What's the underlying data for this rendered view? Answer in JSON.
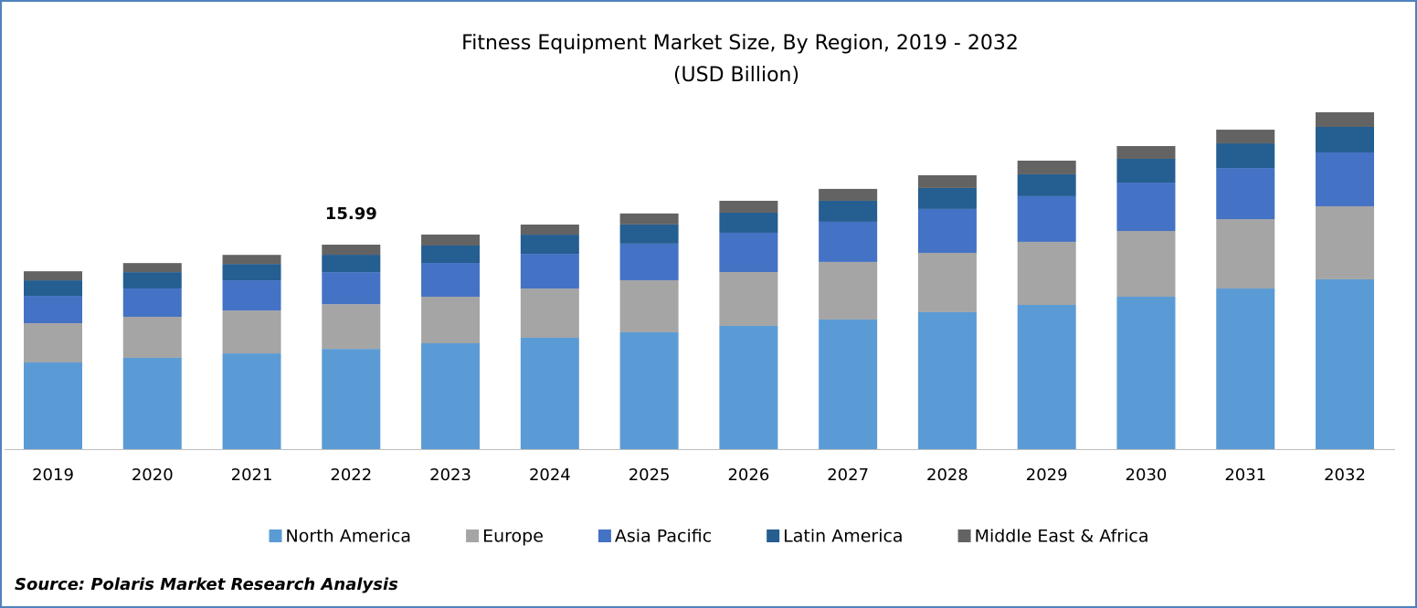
{
  "chart_data": {
    "type": "stacked-bar",
    "title": "Fitness Equipment Market Size, By Region, 2019 - 2032",
    "subtitle": "(USD Billion)",
    "categories": [
      "2019",
      "2020",
      "2021",
      "2022",
      "2023",
      "2024",
      "2025",
      "2026",
      "2027",
      "2028",
      "2029",
      "2030",
      "2031",
      "2032"
    ],
    "series": [
      {
        "name": "North America",
        "color": "#5b9bd5",
        "values": [
          6.78,
          7.14,
          7.49,
          7.84,
          8.28,
          8.71,
          9.14,
          9.64,
          10.14,
          10.71,
          11.28,
          11.92,
          12.56,
          13.28
        ]
      },
      {
        "name": "Europe",
        "color": "#a5a5a5",
        "values": [
          3.07,
          3.21,
          3.35,
          3.5,
          3.64,
          3.85,
          4.07,
          4.21,
          4.5,
          4.64,
          4.93,
          5.14,
          5.42,
          5.71
        ]
      },
      {
        "name": "Asia Pacific",
        "color": "#4472c4",
        "values": [
          2.14,
          2.21,
          2.36,
          2.5,
          2.64,
          2.71,
          2.86,
          3.07,
          3.14,
          3.43,
          3.57,
          3.78,
          4.0,
          4.21
        ]
      },
      {
        "name": "Latin America",
        "color": "#255e91",
        "values": [
          1.21,
          1.28,
          1.28,
          1.36,
          1.36,
          1.5,
          1.5,
          1.57,
          1.64,
          1.64,
          1.71,
          1.86,
          1.93,
          2.0
        ]
      },
      {
        "name": "Middle East & Africa",
        "color": "#636363",
        "values": [
          0.71,
          0.71,
          0.71,
          0.79,
          0.86,
          0.79,
          0.86,
          0.93,
          0.93,
          1.0,
          1.07,
          1.0,
          1.07,
          1.14
        ]
      }
    ],
    "annotations": [
      {
        "category": "2022",
        "label": "15.99"
      }
    ],
    "source": "Source: Polaris Market Research Analysis"
  }
}
